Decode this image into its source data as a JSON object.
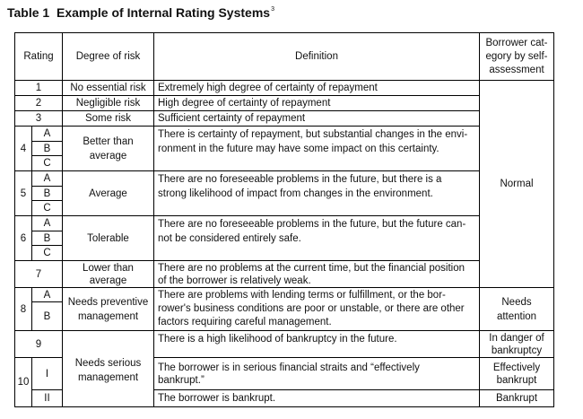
{
  "title": {
    "label": "Table 1",
    "text": "Example of Internal Rating Systems",
    "footnote": "3"
  },
  "headers": {
    "rating": "Rating",
    "risk": "Degree of risk",
    "definition": "Definition",
    "borrower": [
      "Borrower cat-",
      "egory by self-",
      "assessment"
    ]
  },
  "rows": {
    "r1": {
      "rating": "1",
      "risk": "No essential risk",
      "def": "Extremely high degree of certainty of repayment"
    },
    "r2": {
      "rating": "2",
      "risk": "Negligible risk",
      "def": "High degree of certainty of repayment"
    },
    "r3": {
      "rating": "3",
      "risk": "Some risk",
      "def": "Sufficient certainty of repayment"
    },
    "r4": {
      "rating": "4",
      "subs": [
        "A",
        "B",
        "C"
      ],
      "risk": [
        "Better than",
        "average"
      ],
      "def": [
        "There is certainty of repayment, but substantial changes in the envi-",
        "ronment in the future may have some impact on this certainty."
      ]
    },
    "r5": {
      "rating": "5",
      "subs": [
        "A",
        "B",
        "C"
      ],
      "risk": "Average",
      "def": [
        "There are no foreseeable problems in the future, but there is a",
        "strong likelihood of impact from changes in the environment."
      ]
    },
    "r6": {
      "rating": "6",
      "subs": [
        "A",
        "B",
        "C"
      ],
      "risk": "Tolerable",
      "def": [
        "There are no foreseeable problems in the future, but the future can-",
        "not be considered entirely safe."
      ]
    },
    "r7": {
      "rating": "7",
      "risk": [
        "Lower than",
        "average"
      ],
      "def": [
        "There are no problems at the current time, but the financial position",
        "of the borrower is relatively weak."
      ]
    },
    "r8": {
      "rating": "8",
      "subs": [
        "A",
        "B"
      ],
      "risk": [
        "Needs preventive",
        "management"
      ],
      "def": [
        "There are problems with lending terms or fulfillment, or the bor-",
        "rower's business conditions are poor or unstable, or there are other",
        "factors requiring careful management."
      ]
    },
    "r9": {
      "rating": "9",
      "def": "There is a high likelihood of bankruptcy in the future."
    },
    "r10": {
      "rating": "10",
      "subs": [
        "I",
        "II"
      ],
      "def_i": [
        "The borrower is in serious financial straits and “effectively",
        "bankrupt.”"
      ],
      "def_ii": "The borrower is bankrupt."
    },
    "serious": [
      "Needs serious",
      "management"
    ]
  },
  "categories": {
    "normal": "Normal",
    "attention": [
      "Needs",
      "attention"
    ],
    "danger": [
      "In danger of",
      "bankruptcy"
    ],
    "effectively": [
      "Effectively",
      "bankrupt"
    ],
    "bankrupt": "Bankrupt"
  }
}
